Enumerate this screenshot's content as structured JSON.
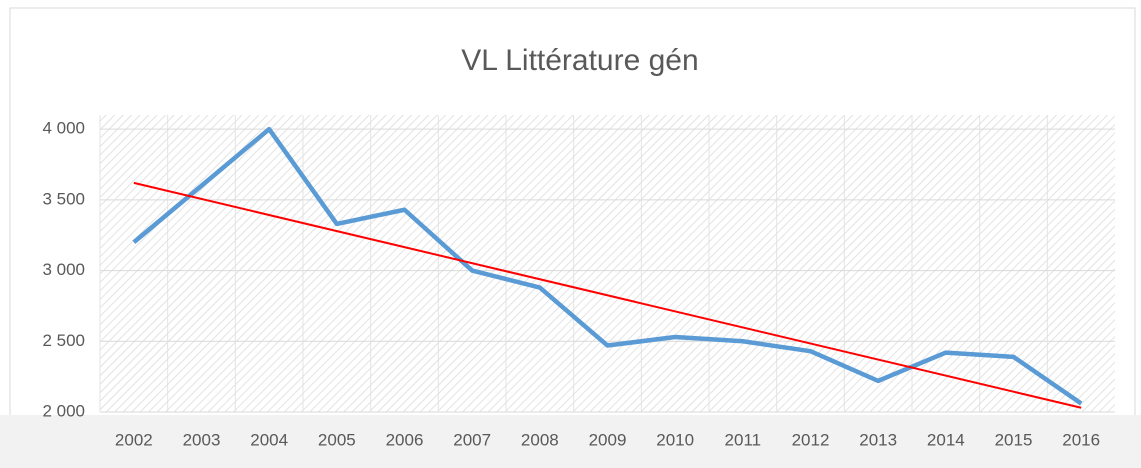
{
  "chart_data": {
    "type": "line",
    "title": "VL Littérature gén",
    "categories": [
      "2002",
      "2003",
      "2004",
      "2005",
      "2006",
      "2007",
      "2008",
      "2009",
      "2010",
      "2011",
      "2012",
      "2013",
      "2014",
      "2015",
      "2016"
    ],
    "series": [
      {
        "color": "#5b9bd5",
        "values": [
          3200,
          3600,
          4000,
          3330,
          3430,
          3000,
          2880,
          2470,
          2530,
          2500,
          2430,
          2220,
          2420,
          2390,
          2060
        ]
      }
    ],
    "trendline": {
      "color": "#ff0000",
      "values": [
        3620,
        2030
      ]
    },
    "ylim": [
      2000,
      4100
    ],
    "yticks": [
      {
        "value": 2000,
        "label": "2 000"
      },
      {
        "value": 2500,
        "label": "2 500"
      },
      {
        "value": 3000,
        "label": "3 000"
      },
      {
        "value": 3500,
        "label": "3 500"
      },
      {
        "value": 4000,
        "label": "4 000"
      }
    ],
    "grid": true
  }
}
